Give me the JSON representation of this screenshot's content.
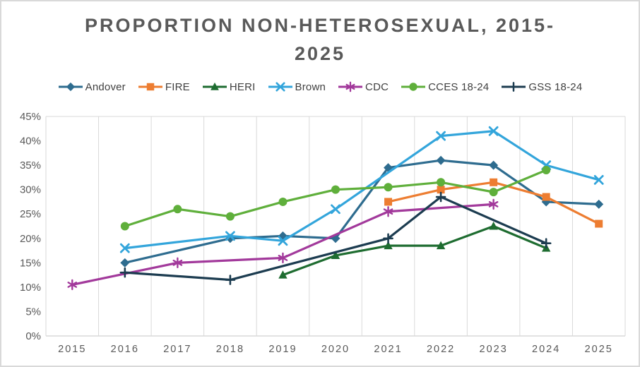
{
  "title": {
    "text": "PROPORTION NON-HETEROSEXUAL, 2015-2025",
    "line1": "PROPORTION NON-HETEROSEXUAL, 2015-",
    "line2": "2025",
    "color": "#595959"
  },
  "chart_data": {
    "type": "line",
    "title": "PROPORTION NON-HETEROSEXUAL, 2015-2025",
    "x_categories": [
      "2015",
      "2016",
      "2017",
      "2018",
      "2019",
      "2020",
      "2021",
      "2022",
      "2023",
      "2024",
      "2025"
    ],
    "y_tick_labels": [
      "0%",
      "5%",
      "10%",
      "15%",
      "20%",
      "25%",
      "30%",
      "35%",
      "40%",
      "45%"
    ],
    "ylim": [
      0,
      45
    ],
    "ytick_step": 5,
    "xlabel": "",
    "ylabel": "",
    "grid": "vertical-gridlines-only",
    "legend_position": "top",
    "gridline_color": "#d9d9d9",
    "axis_label_color": "#595959",
    "series": [
      {
        "name": "Andover",
        "color": "#2e6c8f",
        "marker": "diamond",
        "data": [
          [
            2016,
            15
          ],
          [
            2018,
            20
          ],
          [
            2019,
            20.5
          ],
          [
            2020,
            20
          ],
          [
            2021,
            34.5
          ],
          [
            2022,
            36
          ],
          [
            2023,
            35
          ],
          [
            2024,
            27.5
          ],
          [
            2025,
            27
          ]
        ]
      },
      {
        "name": "FIRE",
        "color": "#ed7d31",
        "marker": "square",
        "data": [
          [
            2021,
            27.5
          ],
          [
            2022,
            30
          ],
          [
            2023,
            31.5
          ],
          [
            2024,
            28.5
          ],
          [
            2025,
            23
          ]
        ]
      },
      {
        "name": "HERI",
        "color": "#1e6c30",
        "marker": "triangle",
        "data": [
          [
            2019,
            12.5
          ],
          [
            2020,
            16.5
          ],
          [
            2021,
            18.5
          ],
          [
            2022,
            18.5
          ],
          [
            2023,
            22.5
          ],
          [
            2024,
            18
          ]
        ]
      },
      {
        "name": "Brown",
        "color": "#33a5db",
        "marker": "x",
        "data": [
          [
            2016,
            18
          ],
          [
            2018,
            20.5
          ],
          [
            2019,
            19.5
          ],
          [
            2020,
            26
          ],
          [
            2022,
            41
          ],
          [
            2023,
            42
          ],
          [
            2024,
            35
          ],
          [
            2025,
            32
          ]
        ]
      },
      {
        "name": "CDC",
        "color": "#a2399b",
        "marker": "asterisk",
        "data": [
          [
            2015,
            10.5
          ],
          [
            2017,
            15
          ],
          [
            2019,
            16
          ],
          [
            2021,
            25.5
          ],
          [
            2023,
            27
          ]
        ]
      },
      {
        "name": "CCES 18-24",
        "color": "#5faf3b",
        "marker": "circle",
        "data": [
          [
            2016,
            22.5
          ],
          [
            2017,
            26
          ],
          [
            2018,
            24.5
          ],
          [
            2019,
            27.5
          ],
          [
            2020,
            30
          ],
          [
            2021,
            30.5
          ],
          [
            2022,
            31.5
          ],
          [
            2023,
            29.5
          ],
          [
            2024,
            34
          ]
        ]
      },
      {
        "name": "GSS 18-24",
        "color": "#1c3c50",
        "marker": "plus",
        "data": [
          [
            2016,
            13
          ],
          [
            2018,
            11.5
          ],
          [
            2021,
            20
          ],
          [
            2022,
            28.5
          ],
          [
            2024,
            19
          ]
        ]
      }
    ]
  }
}
